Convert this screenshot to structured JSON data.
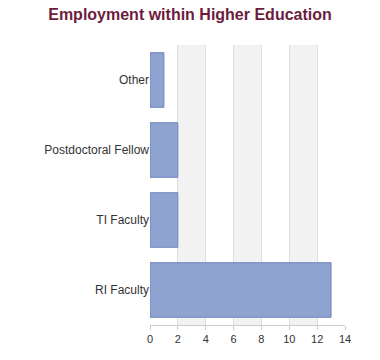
{
  "chart_data": {
    "type": "bar",
    "title": "Employment within Higher Education",
    "orientation": "horizontal",
    "categories": [
      "RI Faculty",
      "TI Faculty",
      "Postdoctoral Fellow",
      "Other"
    ],
    "values": [
      13,
      2,
      2,
      1
    ],
    "color": "#8fa3d1",
    "xlim": [
      0,
      14
    ],
    "xticks": [
      0,
      2,
      4,
      6,
      8,
      10,
      12,
      14
    ],
    "grid": true
  }
}
